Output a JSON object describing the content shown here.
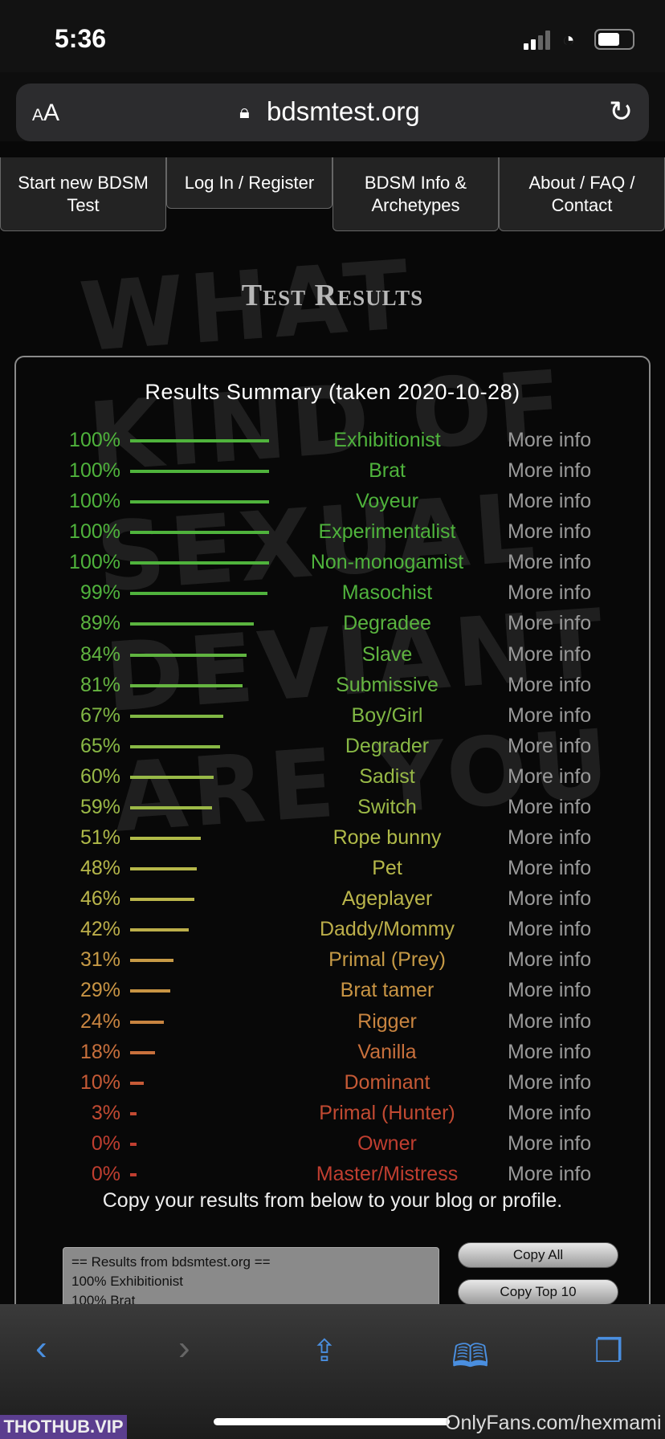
{
  "status_bar": {
    "time": "5:36",
    "signal_icon": "cellular-signal-icon",
    "wifi_icon": "wifi-icon",
    "battery_icon": "battery-icon"
  },
  "browser": {
    "text_size_label_small": "A",
    "text_size_label_large": "A",
    "url": "bdsmtest.org",
    "lock_icon": "lock-icon",
    "reload_icon": "reload-icon"
  },
  "nav": {
    "tabs": [
      {
        "label": "Start new BDSM Test"
      },
      {
        "label": "Log In / Register"
      },
      {
        "label": "BDSM Info & Archetypes"
      },
      {
        "label": "About / FAQ / Contact"
      }
    ]
  },
  "background_graffiti": "WHAT KIND OF SEXUAL DEVIANT ARE YOU",
  "page_title": "Test Results",
  "results": {
    "heading": "Results Summary (taken 2020-10-28)",
    "more_info_label": "More info",
    "items": [
      {
        "percent": 100,
        "label": "100%",
        "name": "Exhibitionist",
        "color": "#4fb33c"
      },
      {
        "percent": 100,
        "label": "100%",
        "name": "Brat",
        "color": "#4fb33c"
      },
      {
        "percent": 100,
        "label": "100%",
        "name": "Voyeur",
        "color": "#4fb33c"
      },
      {
        "percent": 100,
        "label": "100%",
        "name": "Experimentalist",
        "color": "#4fb33c"
      },
      {
        "percent": 100,
        "label": "100%",
        "name": "Non-monogamist",
        "color": "#4fb33c"
      },
      {
        "percent": 99,
        "label": "99%",
        "name": "Masochist",
        "color": "#50b33d"
      },
      {
        "percent": 89,
        "label": "89%",
        "name": "Degradee",
        "color": "#5ab43f"
      },
      {
        "percent": 84,
        "label": "84%",
        "name": "Slave",
        "color": "#60b440"
      },
      {
        "percent": 81,
        "label": "81%",
        "name": "Submissive",
        "color": "#66b541"
      },
      {
        "percent": 67,
        "label": "67%",
        "name": "Boy/Girl",
        "color": "#80b744"
      },
      {
        "percent": 65,
        "label": "65%",
        "name": "Degrader",
        "color": "#88b845"
      },
      {
        "percent": 60,
        "label": "60%",
        "name": "Sadist",
        "color": "#98b947"
      },
      {
        "percent": 59,
        "label": "59%",
        "name": "Switch",
        "color": "#9cb947"
      },
      {
        "percent": 51,
        "label": "51%",
        "name": "Rope bunny",
        "color": "#b0ba49"
      },
      {
        "percent": 48,
        "label": "48%",
        "name": "Pet",
        "color": "#b6b74a"
      },
      {
        "percent": 46,
        "label": "46%",
        "name": "Ageplayer",
        "color": "#bab54b"
      },
      {
        "percent": 42,
        "label": "42%",
        "name": "Daddy/Mommy",
        "color": "#bcae4a"
      },
      {
        "percent": 31,
        "label": "31%",
        "name": "Primal (Prey)",
        "color": "#c69a46"
      },
      {
        "percent": 29,
        "label": "29%",
        "name": "Brat tamer",
        "color": "#c89444"
      },
      {
        "percent": 24,
        "label": "24%",
        "name": "Rigger",
        "color": "#c88440"
      },
      {
        "percent": 18,
        "label": "18%",
        "name": "Vanilla",
        "color": "#c8703c"
      },
      {
        "percent": 10,
        "label": "10%",
        "name": "Dominant",
        "color": "#c65a36"
      },
      {
        "percent": 3,
        "label": "3%",
        "name": "Primal (Hunter)",
        "color": "#c24a32"
      },
      {
        "percent": 0,
        "label": "0%",
        "name": "Owner",
        "color": "#c03e30"
      },
      {
        "percent": 0,
        "label": "0%",
        "name": "Master/Mistress",
        "color": "#c03e30"
      }
    ]
  },
  "copy_section": {
    "instructions": "Copy your results from below to your blog or profile.",
    "textarea_lines": [
      "== Results from bdsmtest.org ==",
      "100% Exhibitionist",
      "100% Brat"
    ],
    "copy_all_label": "Copy All",
    "copy_top10_label": "Copy Top 10"
  },
  "toolbar": {
    "back_icon": "back-icon",
    "forward_icon": "forward-icon",
    "share_icon": "share-icon",
    "bookmarks_icon": "bookmarks-icon",
    "tabs_icon": "tabs-icon"
  },
  "watermarks": {
    "left": "THOTHUB.VIP",
    "right": "OnlyFans.com/hexmami"
  }
}
